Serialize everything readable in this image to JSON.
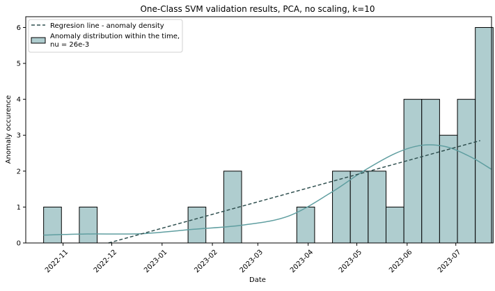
{
  "chart_data": {
    "type": "bar",
    "title": "One-Class SVM validation results, PCA, no scaling, k=10",
    "xlabel": "Date",
    "ylabel": "Anomaly occurence",
    "ylim": [
      0,
      6.3
    ],
    "xlim": [
      "2022-10-09",
      "2023-07-23"
    ],
    "yticks": [
      0,
      1,
      2,
      3,
      4,
      5,
      6
    ],
    "xticks": [
      "2022-11-01",
      "2022-12-01",
      "2023-01-01",
      "2023-02-01",
      "2023-03-01",
      "2023-04-01",
      "2023-05-01",
      "2023-06-01",
      "2023-07-01"
    ],
    "xtick_labels": [
      "2022-11",
      "2022-12",
      "2023-01",
      "2023-02",
      "2023-03",
      "2023-04",
      "2023-05",
      "2023-06",
      "2023-07"
    ],
    "grid": false,
    "legend_position": "top-left",
    "legend": [
      {
        "label": "Regresion line - anomaly density",
        "kind": "line"
      },
      {
        "label": "Anomaly distribution within the time,\nnu = 26e-3",
        "kind": "patch"
      }
    ],
    "bins": [
      {
        "start": "2022-10-20",
        "end": "2022-10-31",
        "count": 1
      },
      {
        "start": "2022-10-31",
        "end": "2022-11-11",
        "count": 0
      },
      {
        "start": "2022-11-11",
        "end": "2022-11-22",
        "count": 1
      },
      {
        "start": "2022-11-22",
        "end": "2022-12-03",
        "count": 0
      },
      {
        "start": "2022-12-03",
        "end": "2022-12-14",
        "count": 0
      },
      {
        "start": "2022-12-14",
        "end": "2022-12-25",
        "count": 0
      },
      {
        "start": "2022-12-25",
        "end": "2023-01-05",
        "count": 0
      },
      {
        "start": "2023-01-05",
        "end": "2023-01-17",
        "count": 0
      },
      {
        "start": "2023-01-17",
        "end": "2023-01-28",
        "count": 1
      },
      {
        "start": "2023-01-28",
        "end": "2023-02-08",
        "count": 0
      },
      {
        "start": "2023-02-08",
        "end": "2023-02-19",
        "count": 2
      },
      {
        "start": "2023-02-19",
        "end": "2023-03-02",
        "count": 0
      },
      {
        "start": "2023-03-02",
        "end": "2023-03-14",
        "count": 0
      },
      {
        "start": "2023-03-14",
        "end": "2023-03-25",
        "count": 0
      },
      {
        "start": "2023-03-25",
        "end": "2023-04-05",
        "count": 1
      },
      {
        "start": "2023-04-05",
        "end": "2023-04-16",
        "count": 0
      },
      {
        "start": "2023-04-16",
        "end": "2023-04-27",
        "count": 2
      },
      {
        "start": "2023-04-27",
        "end": "2023-05-08",
        "count": 2
      },
      {
        "start": "2023-05-08",
        "end": "2023-05-19",
        "count": 2
      },
      {
        "start": "2023-05-19",
        "end": "2023-05-30",
        "count": 1
      },
      {
        "start": "2023-05-30",
        "end": "2023-06-10",
        "count": 4
      },
      {
        "start": "2023-06-10",
        "end": "2023-06-21",
        "count": 4
      },
      {
        "start": "2023-06-21",
        "end": "2023-07-02",
        "count": 3
      },
      {
        "start": "2023-07-02",
        "end": "2023-07-13",
        "count": 4
      },
      {
        "start": "2023-07-13",
        "end": "2023-07-24",
        "count": 6
      }
    ],
    "regression_line": {
      "x": [
        "2022-11-29",
        "2023-07-16"
      ],
      "y": [
        0,
        2.85
      ]
    },
    "density_curve": {
      "x": [
        "2022-10-20",
        "2022-11-15",
        "2022-12-20",
        "2023-01-20",
        "2023-02-20",
        "2023-03-20",
        "2023-04-15",
        "2023-05-05",
        "2023-05-25",
        "2023-06-10",
        "2023-06-25",
        "2023-07-10",
        "2023-07-23"
      ],
      "y": [
        0.22,
        0.25,
        0.26,
        0.38,
        0.5,
        0.75,
        1.4,
        2.0,
        2.5,
        2.72,
        2.68,
        2.4,
        2.05
      ]
    },
    "colors": {
      "bar_fill": "#afcdcf",
      "bar_edge": "#000000",
      "density_line": "#5f9ea0",
      "regression_line": "#2f4f4f"
    }
  }
}
